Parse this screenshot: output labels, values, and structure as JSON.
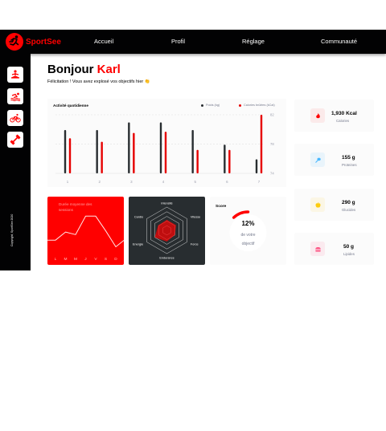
{
  "brand": {
    "name": "SportSee",
    "accent": "#ff0101"
  },
  "nav": {
    "items": [
      {
        "label": "Accueil"
      },
      {
        "label": "Profil"
      },
      {
        "label": "Réglage"
      },
      {
        "label": "Communauté"
      }
    ]
  },
  "sidebar": {
    "icons": [
      "meditation-icon",
      "swimming-icon",
      "cycling-icon",
      "dumbbell-icon"
    ],
    "copyright": "Copyright, SportSee 2020"
  },
  "greeting": {
    "hello": "Bonjour",
    "first_name": "Karl",
    "message": "Félicitation ! Vous avez explosé vos objectifs hier 👏"
  },
  "activity": {
    "title": "Activité quotidienne",
    "legend_weight": "Poids (kg)",
    "legend_calories": "Calories brûlées (kCal)",
    "colors": {
      "weight": "#282d30",
      "calories": "#e60000"
    },
    "chart_data": {
      "type": "bar",
      "categories": [
        "1",
        "2",
        "3",
        "4",
        "5",
        "6",
        "7"
      ],
      "y_ticks": [
        "82",
        "78",
        "74"
      ],
      "series": [
        {
          "name": "Poids (kg)",
          "values": [
            0.74,
            0.74,
            0.87,
            0.87,
            0.74,
            0.49,
            0.24
          ]
        },
        {
          "name": "Calories brûlées (kCal)",
          "values": [
            0.6,
            0.54,
            0.69,
            0.71,
            0.4,
            0.4,
            1.0
          ]
        }
      ]
    }
  },
  "sessions": {
    "title": "Durée moyenne des sessions",
    "color": "#ff0000",
    "chart_data": {
      "type": "line",
      "categories": [
        "L",
        "M",
        "M",
        "J",
        "V",
        "S",
        "D"
      ],
      "values": [
        0.3,
        0.52,
        0.45,
        0.95,
        0.95,
        0.55,
        0.12
      ]
    }
  },
  "performance": {
    "color": "#ff0101",
    "chart_data": {
      "type": "radar",
      "categories": [
        "Intensité",
        "Vitesse",
        "Force",
        "Endurance",
        "Energie",
        "Cardio"
      ],
      "values": [
        0.45,
        0.45,
        0.4,
        0.48,
        0.6,
        0.43
      ]
    }
  },
  "score": {
    "title": "Score",
    "percent": "12%",
    "line1": "de votre",
    "line2": "objectif",
    "value": 0.12,
    "color": "#ff0000"
  },
  "key_data": [
    {
      "value": "1,930 Kcal",
      "label": "Calories",
      "icon": "fire-icon",
      "color": "#ff0000",
      "bg": "#fbeaea"
    },
    {
      "value": "155 g",
      "label": "Proteines",
      "icon": "chicken-icon",
      "color": "#4ab8ff",
      "bg": "#e9f4fb"
    },
    {
      "value": "290 g",
      "label": "Glucides",
      "icon": "apple-icon",
      "color": "#fdcc0c",
      "bg": "#fbf6e5"
    },
    {
      "value": "50 g",
      "label": "Lipides",
      "icon": "cheeseburger-icon",
      "color": "#fd5181",
      "bg": "#fbeaef"
    }
  ]
}
